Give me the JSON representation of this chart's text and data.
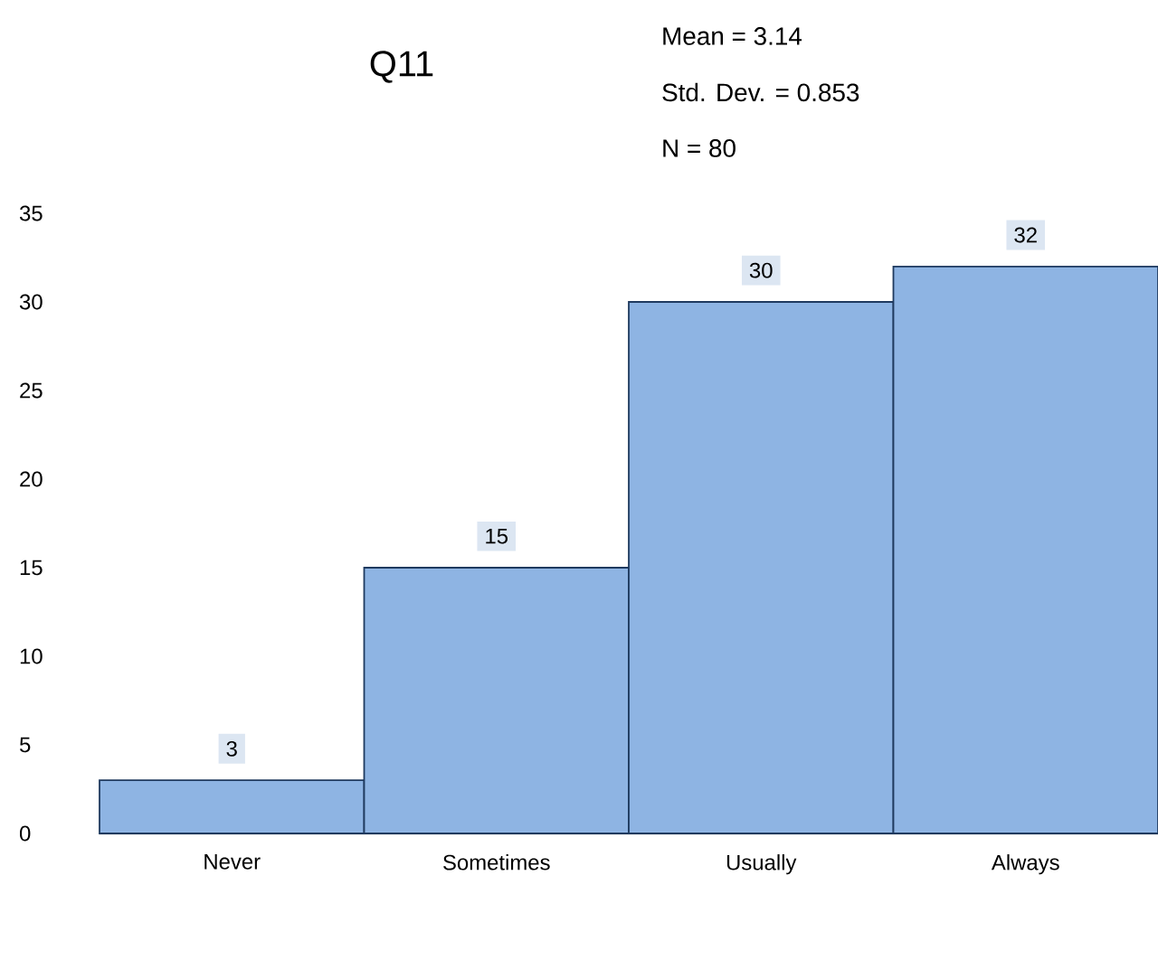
{
  "chart_data": {
    "type": "bar",
    "title": "Q11",
    "annotations": [
      "Mean = 3.14",
      "Std. Dev. = 0.853",
      "N = 80"
    ],
    "categories": [
      "Never",
      "Sometimes",
      "Usually",
      "Always"
    ],
    "values": [
      3,
      15,
      30,
      32
    ],
    "color": "#8eb4e3",
    "ylim": [
      0,
      35
    ],
    "yticks": [
      0,
      5,
      10,
      15,
      20,
      25,
      30,
      35
    ],
    "data_labels": true,
    "grid": false
  }
}
